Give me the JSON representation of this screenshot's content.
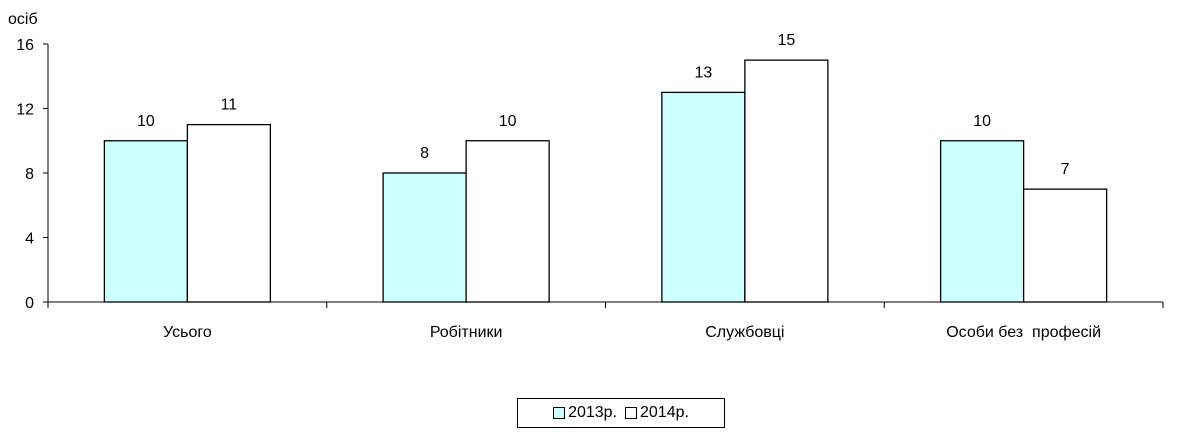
{
  "chart_data": {
    "type": "bar",
    "title": "",
    "ylabel": "осіб",
    "xlabel": "",
    "ylim": [
      0,
      16
    ],
    "yticks": [
      0,
      4,
      8,
      12,
      16
    ],
    "categories": [
      "Усього",
      "Робітники",
      "Службовці",
      "Особи без  професій"
    ],
    "series": [
      {
        "name": "2013р.",
        "color": "#ccffff",
        "values": [
          10,
          8,
          13,
          10
        ]
      },
      {
        "name": "2014р.",
        "color": "#ffffff",
        "values": [
          11,
          10,
          15,
          7
        ]
      }
    ],
    "data_labels": true,
    "grid": false,
    "legend_position": "bottom-center"
  }
}
